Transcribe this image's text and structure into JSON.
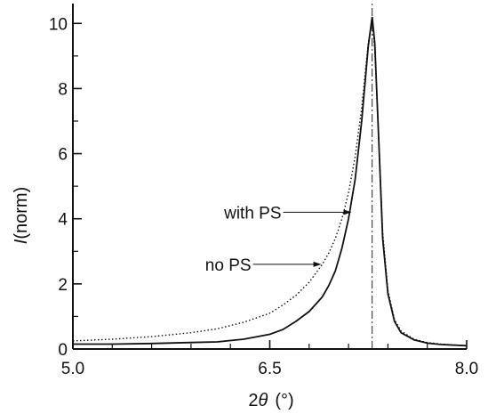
{
  "chart_data": {
    "type": "line",
    "xlabel_prefix": "2",
    "xlabel_symbol": "θ",
    "xlabel_unit": "(°)",
    "ylabel_symbol": "I",
    "ylabel_unit": "(norm)",
    "xlim": [
      5.0,
      8.0
    ],
    "ylim": [
      0,
      10.5
    ],
    "x_ticks": [
      {
        "value": 5.0,
        "label": "5.0"
      },
      {
        "value": 6.5,
        "label": "6.5"
      },
      {
        "value": 8.0,
        "label": "8.0"
      }
    ],
    "y_ticks": [
      {
        "value": 0,
        "label": "0"
      },
      {
        "value": 2,
        "label": "2"
      },
      {
        "value": 4,
        "label": "4"
      },
      {
        "value": 6,
        "label": "6"
      },
      {
        "value": 8,
        "label": "8"
      },
      {
        "value": 10,
        "label": "10"
      }
    ],
    "peak_marker_x": 7.28,
    "series": [
      {
        "name": "with PS",
        "style": "dotted",
        "x": [
          5.0,
          5.3,
          5.6,
          5.9,
          6.1,
          6.3,
          6.5,
          6.6,
          6.7,
          6.8,
          6.9,
          6.95,
          7.0,
          7.05,
          7.1,
          7.15,
          7.2,
          7.25,
          7.28,
          7.3,
          7.33,
          7.36,
          7.4,
          7.45,
          7.5,
          7.6,
          7.7,
          7.8,
          8.0
        ],
        "y": [
          0.25,
          0.3,
          0.38,
          0.5,
          0.62,
          0.82,
          1.1,
          1.35,
          1.65,
          2.05,
          2.6,
          2.95,
          3.4,
          4.0,
          4.8,
          5.9,
          7.4,
          9.4,
          10.1,
          9.2,
          6.5,
          3.6,
          1.8,
          0.9,
          0.55,
          0.3,
          0.2,
          0.15,
          0.1
        ]
      },
      {
        "name": "no PS",
        "style": "solid",
        "x": [
          5.0,
          5.3,
          5.6,
          5.9,
          6.1,
          6.3,
          6.5,
          6.6,
          6.7,
          6.8,
          6.9,
          6.95,
          7.0,
          7.05,
          7.1,
          7.15,
          7.2,
          7.25,
          7.28,
          7.3,
          7.33,
          7.36,
          7.4,
          7.45,
          7.5,
          7.6,
          7.7,
          7.8,
          8.0
        ],
        "y": [
          0.15,
          0.15,
          0.17,
          0.2,
          0.22,
          0.3,
          0.45,
          0.6,
          0.85,
          1.15,
          1.6,
          1.95,
          2.4,
          3.1,
          4.0,
          5.2,
          7.0,
          9.3,
          10.2,
          9.4,
          6.4,
          3.4,
          1.7,
          0.85,
          0.5,
          0.28,
          0.18,
          0.14,
          0.1
        ]
      }
    ],
    "annotations": [
      {
        "text": "with PS",
        "series": "with PS",
        "arrow_x": 7.13,
        "arrow_y": 4.2
      },
      {
        "text": "no PS",
        "series": "no PS",
        "arrow_x": 6.9,
        "arrow_y": 2.6
      }
    ]
  }
}
